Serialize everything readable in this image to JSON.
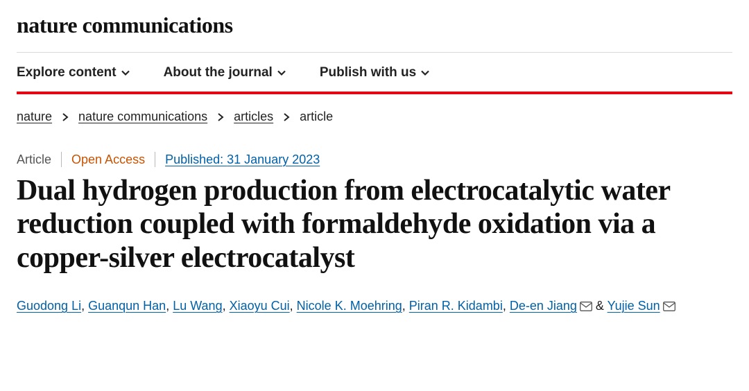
{
  "brand": "nature communications",
  "nav": {
    "items": [
      {
        "label": "Explore content"
      },
      {
        "label": "About the journal"
      },
      {
        "label": "Publish with us"
      }
    ]
  },
  "colors": {
    "accent_red": "#e30613",
    "link_blue": "#0060a8",
    "open_access": "#c65302",
    "text": "#222222",
    "divider": "#d9d9d9"
  },
  "breadcrumbs": {
    "items": [
      {
        "label": "nature",
        "link": true
      },
      {
        "label": "nature communications",
        "link": true
      },
      {
        "label": "articles",
        "link": true
      },
      {
        "label": "article",
        "link": false
      }
    ]
  },
  "meta": {
    "type": "Article",
    "access": "Open Access",
    "published_prefix": "Published: ",
    "published_date": "31 January 2023"
  },
  "article": {
    "title": "Dual hydrogen production from electrocatalytic water reduction coupled with formaldehyde oxidation via a copper-silver electrocatalyst"
  },
  "authors": {
    "sep": ", ",
    "and": " & ",
    "list": [
      {
        "name": "Guodong Li",
        "corresponding": false
      },
      {
        "name": "Guanqun Han",
        "corresponding": false
      },
      {
        "name": "Lu Wang",
        "corresponding": false
      },
      {
        "name": "Xiaoyu Cui",
        "corresponding": false
      },
      {
        "name": "Nicole K. Moehring",
        "corresponding": false
      },
      {
        "name": "Piran R. Kidambi",
        "corresponding": false
      },
      {
        "name": "De-en Jiang",
        "corresponding": true
      },
      {
        "name": "Yujie Sun",
        "corresponding": true
      }
    ]
  }
}
